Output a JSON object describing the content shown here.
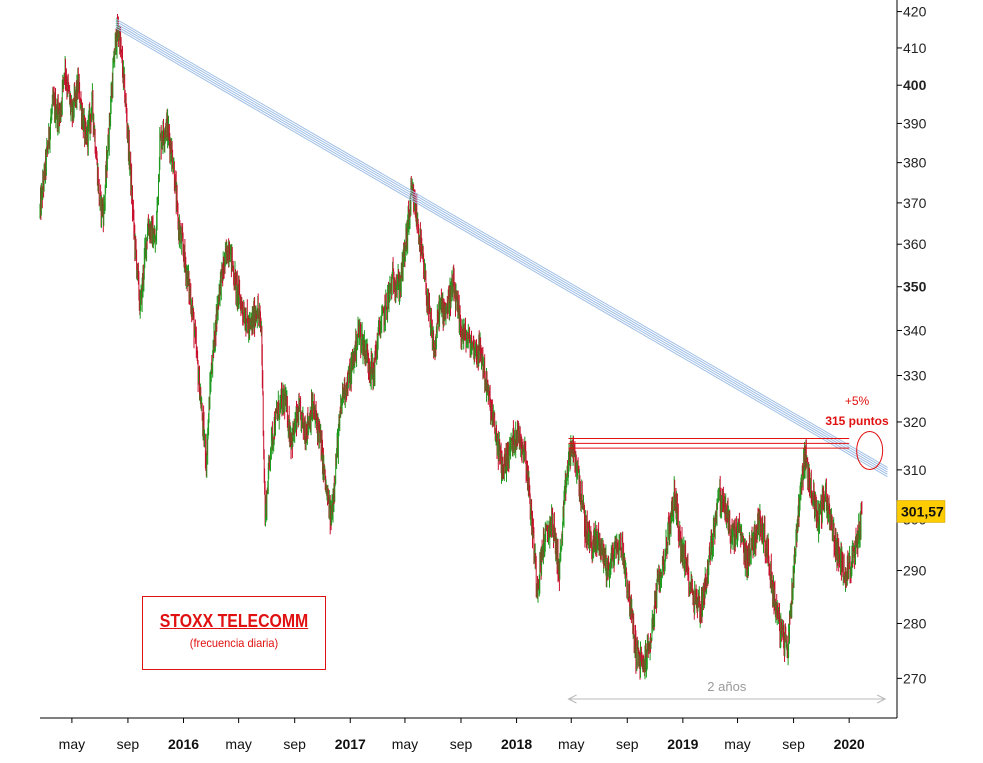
{
  "chart_data": {
    "type": "line",
    "title": "STOXX TELECOMM",
    "subtitle": "(frecuencia diaria)",
    "ylim": [
      263,
      421
    ],
    "y_scale": "log",
    "yticks": [
      270,
      280,
      290,
      300,
      310,
      320,
      330,
      340,
      350,
      360,
      370,
      380,
      390,
      400,
      410,
      420
    ],
    "ytick_labels": [
      "270",
      "280",
      "290",
      "300",
      "310",
      "320",
      "330",
      "340",
      "350",
      "360",
      "370",
      "380",
      "390",
      "400",
      "410",
      "420"
    ],
    "ytick_bold": [
      350,
      400
    ],
    "xlim": [
      "2015-02-20",
      "2020-04-15"
    ],
    "xticks": [
      {
        "date": "2015-05-01",
        "label": "may",
        "bold": false
      },
      {
        "date": "2015-09-01",
        "label": "sep",
        "bold": false
      },
      {
        "date": "2016-01-01",
        "label": "2016",
        "bold": true
      },
      {
        "date": "2016-05-01",
        "label": "may",
        "bold": false
      },
      {
        "date": "2016-09-01",
        "label": "sep",
        "bold": false
      },
      {
        "date": "2017-01-01",
        "label": "2017",
        "bold": true
      },
      {
        "date": "2017-05-01",
        "label": "may",
        "bold": false
      },
      {
        "date": "2017-09-01",
        "label": "sep",
        "bold": false
      },
      {
        "date": "2018-01-01",
        "label": "2018",
        "bold": true
      },
      {
        "date": "2018-05-01",
        "label": "may",
        "bold": false
      },
      {
        "date": "2018-09-01",
        "label": "sep",
        "bold": false
      },
      {
        "date": "2019-01-01",
        "label": "2019",
        "bold": true
      },
      {
        "date": "2019-05-01",
        "label": "may",
        "bold": false
      },
      {
        "date": "2019-09-01",
        "label": "sep",
        "bold": false
      },
      {
        "date": "2020-01-01",
        "label": "2020",
        "bold": true
      }
    ],
    "series": [
      {
        "points": [
          [
            "2015-02-20",
            368
          ],
          [
            "2015-03-05",
            380
          ],
          [
            "2015-03-20",
            395
          ],
          [
            "2015-04-05",
            392
          ],
          [
            "2015-04-15",
            405
          ],
          [
            "2015-05-01",
            392
          ],
          [
            "2015-05-15",
            400
          ],
          [
            "2015-06-01",
            385
          ],
          [
            "2015-06-15",
            395
          ],
          [
            "2015-07-01",
            370
          ],
          [
            "2015-07-10",
            368
          ],
          [
            "2015-07-25",
            395
          ],
          [
            "2015-08-05",
            412
          ],
          [
            "2015-08-12",
            415
          ],
          [
            "2015-08-25",
            398
          ],
          [
            "2015-09-05",
            380
          ],
          [
            "2015-09-15",
            362
          ],
          [
            "2015-09-28",
            345
          ],
          [
            "2015-10-15",
            365
          ],
          [
            "2015-11-01",
            360
          ],
          [
            "2015-11-10",
            385
          ],
          [
            "2015-11-25",
            390
          ],
          [
            "2015-12-10",
            380
          ],
          [
            "2015-12-20",
            365
          ],
          [
            "2016-01-01",
            358
          ],
          [
            "2016-01-20",
            345
          ],
          [
            "2016-02-10",
            322
          ],
          [
            "2016-02-20",
            312
          ],
          [
            "2016-03-01",
            330
          ],
          [
            "2016-03-20",
            350
          ],
          [
            "2016-04-10",
            360
          ],
          [
            "2016-04-25",
            350
          ],
          [
            "2016-05-10",
            345
          ],
          [
            "2016-05-25",
            340
          ],
          [
            "2016-06-10",
            345
          ],
          [
            "2016-06-20",
            340
          ],
          [
            "2016-06-28",
            300
          ],
          [
            "2016-07-10",
            315
          ],
          [
            "2016-07-25",
            322
          ],
          [
            "2016-08-10",
            325
          ],
          [
            "2016-08-25",
            316
          ],
          [
            "2016-09-10",
            322
          ],
          [
            "2016-09-25",
            318
          ],
          [
            "2016-10-10",
            323
          ],
          [
            "2016-10-25",
            318
          ],
          [
            "2016-11-10",
            305
          ],
          [
            "2016-11-20",
            300
          ],
          [
            "2016-12-01",
            312
          ],
          [
            "2016-12-15",
            326
          ],
          [
            "2017-01-01",
            330
          ],
          [
            "2017-01-20",
            340
          ],
          [
            "2017-02-05",
            335
          ],
          [
            "2017-02-20",
            330
          ],
          [
            "2017-03-05",
            340
          ],
          [
            "2017-03-20",
            345
          ],
          [
            "2017-04-05",
            352
          ],
          [
            "2017-04-20",
            350
          ],
          [
            "2017-05-05",
            362
          ],
          [
            "2017-05-15",
            372
          ],
          [
            "2017-05-25",
            368
          ],
          [
            "2017-06-10",
            355
          ],
          [
            "2017-06-25",
            342
          ],
          [
            "2017-07-05",
            335
          ],
          [
            "2017-07-15",
            345
          ],
          [
            "2017-08-01",
            345
          ],
          [
            "2017-08-15",
            350
          ],
          [
            "2017-09-01",
            340
          ],
          [
            "2017-09-15",
            338
          ],
          [
            "2017-10-01",
            336
          ],
          [
            "2017-10-15",
            335
          ],
          [
            "2017-11-01",
            325
          ],
          [
            "2017-11-15",
            318
          ],
          [
            "2017-12-01",
            310
          ],
          [
            "2017-12-20",
            315
          ],
          [
            "2018-01-01",
            318
          ],
          [
            "2018-01-20",
            314
          ],
          [
            "2018-02-05",
            298
          ],
          [
            "2018-02-15",
            287
          ],
          [
            "2018-03-01",
            295
          ],
          [
            "2018-03-20",
            300
          ],
          [
            "2018-04-05",
            290
          ],
          [
            "2018-04-20",
            308
          ],
          [
            "2018-05-01",
            315
          ],
          [
            "2018-05-15",
            310
          ],
          [
            "2018-06-01",
            298
          ],
          [
            "2018-06-15",
            295
          ],
          [
            "2018-07-01",
            296
          ],
          [
            "2018-07-20",
            290
          ],
          [
            "2018-08-05",
            294
          ],
          [
            "2018-08-20",
            295
          ],
          [
            "2018-09-05",
            285
          ],
          [
            "2018-09-20",
            275
          ],
          [
            "2018-10-05",
            272
          ],
          [
            "2018-10-20",
            276
          ],
          [
            "2018-11-05",
            286
          ],
          [
            "2018-11-20",
            292
          ],
          [
            "2018-12-05",
            300
          ],
          [
            "2018-12-15",
            305
          ],
          [
            "2018-12-25",
            296
          ],
          [
            "2019-01-10",
            290
          ],
          [
            "2019-01-25",
            285
          ],
          [
            "2019-02-10",
            283
          ],
          [
            "2019-02-25",
            290
          ],
          [
            "2019-03-10",
            298
          ],
          [
            "2019-03-20",
            305
          ],
          [
            "2019-04-05",
            302
          ],
          [
            "2019-04-20",
            296
          ],
          [
            "2019-05-05",
            298
          ],
          [
            "2019-05-20",
            292
          ],
          [
            "2019-06-05",
            296
          ],
          [
            "2019-06-20",
            300
          ],
          [
            "2019-07-05",
            294
          ],
          [
            "2019-07-20",
            285
          ],
          [
            "2019-08-05",
            278
          ],
          [
            "2019-08-20",
            276
          ],
          [
            "2019-09-05",
            295
          ],
          [
            "2019-09-15",
            305
          ],
          [
            "2019-09-25",
            313
          ],
          [
            "2019-10-10",
            306
          ],
          [
            "2019-10-25",
            300
          ],
          [
            "2019-11-10",
            305
          ],
          [
            "2019-11-25",
            298
          ],
          [
            "2019-12-10",
            292
          ],
          [
            "2019-12-25",
            290
          ],
          [
            "2020-01-10",
            292
          ],
          [
            "2020-01-20",
            296
          ],
          [
            "2020-01-29",
            301.57
          ]
        ]
      }
    ],
    "last_value_label": "301,57",
    "resistance_trend": {
      "from": [
        "2015-08-05",
        418
      ],
      "to": [
        "2020-03-25",
        310.5
      ],
      "band_lines": 5
    },
    "horizontal_resistance": {
      "from": "2018-04-25",
      "to": "2020-01-01",
      "levels": [
        314.5,
        315.5,
        316.5
      ]
    },
    "annotation": {
      "line1": "+5%",
      "line2": "315 puntos",
      "circle_at": [
        "2020-02-15",
        314
      ]
    },
    "span_label": "2 años",
    "span": [
      "2018-04-25",
      "2020-03-20"
    ],
    "colors": {
      "up": "#1e9a1e",
      "down": "#c8102e",
      "trend": "#9fbfe6",
      "annotation": "#e01010",
      "price_tag": "#ffcc00",
      "span": "#b8b8b8"
    }
  }
}
